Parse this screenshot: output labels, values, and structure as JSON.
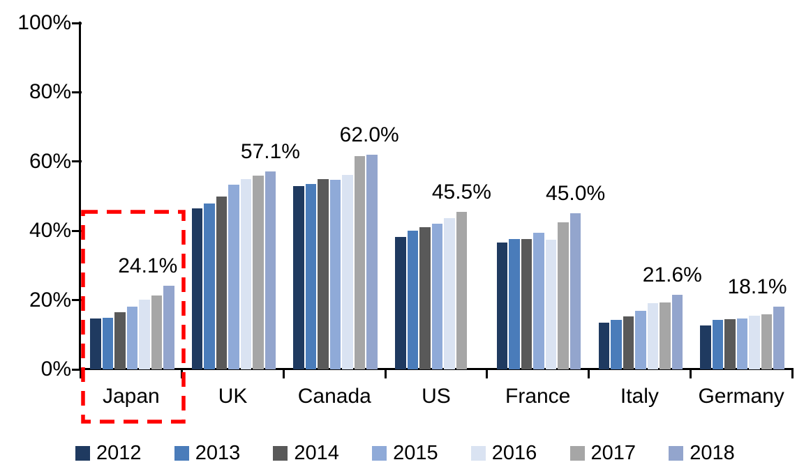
{
  "chart_data": {
    "type": "bar",
    "title": "",
    "xlabel": "",
    "ylabel": "",
    "categories": [
      "Japan",
      "UK",
      "Canada",
      "US",
      "France",
      "Italy",
      "Germany"
    ],
    "series": [
      {
        "name": "2012",
        "color": "#1F3A60",
        "values": [
          14.7,
          46.4,
          53.0,
          38.3,
          36.6,
          13.4,
          12.7
        ]
      },
      {
        "name": "2013",
        "color": "#4A7CBA",
        "values": [
          14.9,
          47.9,
          53.5,
          40.1,
          37.7,
          14.2,
          14.2
        ]
      },
      {
        "name": "2014",
        "color": "#595959",
        "values": [
          16.5,
          50.0,
          54.9,
          41.1,
          37.7,
          15.3,
          14.5
        ]
      },
      {
        "name": "2015",
        "color": "#8FAAD8",
        "values": [
          18.1,
          53.3,
          54.8,
          42.1,
          39.4,
          16.9,
          14.7
        ]
      },
      {
        "name": "2016",
        "color": "#DAE3F2",
        "values": [
          20.1,
          54.9,
          56.2,
          43.6,
          37.5,
          19.1,
          15.4
        ]
      },
      {
        "name": "2017",
        "color": "#A6A6A6",
        "values": [
          21.3,
          55.9,
          61.5,
          45.5,
          42.5,
          19.3,
          15.9
        ]
      },
      {
        "name": "2018",
        "color": "#93A5CD",
        "values": [
          24.1,
          57.1,
          62.0,
          null,
          45.0,
          21.6,
          18.1
        ]
      }
    ],
    "callouts": [
      {
        "category": "Japan",
        "text": "24.1%",
        "dx": -30
      },
      {
        "category": "UK",
        "text": "57.1%",
        "dx": 0
      },
      {
        "category": "Canada",
        "text": "62.0%",
        "dx": -4
      },
      {
        "category": "US",
        "text": "45.5%",
        "dx": 0
      },
      {
        "category": "France",
        "text": "45.0%",
        "dx": 0
      },
      {
        "category": "Italy",
        "text": "21.6%",
        "dx": -7
      },
      {
        "category": "Germany",
        "text": "18.1%",
        "dx": -31
      }
    ],
    "y_axis": {
      "ticks": [
        "0%",
        "20%",
        "40%",
        "60%",
        "80%",
        "100%"
      ],
      "min": 0,
      "max": 100,
      "tick_step": 20,
      "grid": false
    },
    "legend": {
      "position": "bottom",
      "entries": [
        "2012",
        "2013",
        "2014",
        "2015",
        "2016",
        "2017",
        "2018"
      ]
    },
    "highlight": {
      "category": "Japan",
      "color": "#FF0000",
      "style": "dashed"
    }
  },
  "colors": {
    "background": "#FFFFFF",
    "axis": "#000000",
    "text": "#000000",
    "highlight": "#FF0000"
  }
}
